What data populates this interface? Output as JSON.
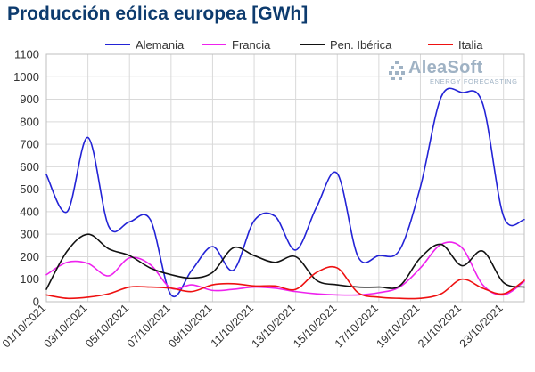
{
  "title": "Producción eólica europea [GWh]",
  "logo": {
    "name": "AleaSoft",
    "tagline": "ENERGY FORECASTING"
  },
  "chart_data": {
    "type": "line",
    "title": "Producción eólica europea [GWh]",
    "xlabel": "",
    "ylabel": "",
    "ylim": [
      0,
      1100
    ],
    "yticks": [
      0,
      100,
      200,
      300,
      400,
      500,
      600,
      700,
      800,
      900,
      1000,
      1100
    ],
    "grid": true,
    "legend_position": "top",
    "x": [
      "01/10/2021",
      "02/10/2021",
      "03/10/2021",
      "04/10/2021",
      "05/10/2021",
      "06/10/2021",
      "07/10/2021",
      "08/10/2021",
      "09/10/2021",
      "10/10/2021",
      "11/10/2021",
      "12/10/2021",
      "13/10/2021",
      "14/10/2021",
      "15/10/2021",
      "16/10/2021",
      "17/10/2021",
      "18/10/2021",
      "19/10/2021",
      "20/10/2021",
      "21/10/2021",
      "22/10/2021",
      "23/10/2021",
      "24/10/2021"
    ],
    "xtick_labels": [
      "01/10/2021",
      "03/10/2021",
      "05/10/2021",
      "07/10/2021",
      "09/10/2021",
      "11/10/2021",
      "13/10/2021",
      "15/10/2021",
      "17/10/2021",
      "19/10/2021",
      "21/10/2021",
      "23/10/2021"
    ],
    "series": [
      {
        "name": "Alemania",
        "color": "#2323d6",
        "values": [
          565,
          400,
          730,
          335,
          355,
          365,
          30,
          140,
          245,
          140,
          360,
          380,
          230,
          420,
          570,
          200,
          205,
          230,
          510,
          910,
          930,
          880,
          380,
          365
        ]
      },
      {
        "name": "Francia",
        "color": "#ee22ee",
        "values": [
          120,
          175,
          170,
          115,
          195,
          165,
          60,
          75,
          50,
          55,
          65,
          60,
          45,
          35,
          30,
          30,
          40,
          65,
          150,
          255,
          240,
          75,
          30,
          90
        ]
      },
      {
        "name": "Pen. Ibérica",
        "color": "#111111",
        "values": [
          55,
          225,
          300,
          235,
          205,
          150,
          120,
          105,
          130,
          240,
          205,
          175,
          200,
          95,
          75,
          65,
          65,
          70,
          195,
          255,
          160,
          225,
          85,
          65
        ]
      },
      {
        "name": "Italia",
        "color": "#ee1111",
        "values": [
          30,
          15,
          20,
          35,
          65,
          65,
          60,
          45,
          75,
          80,
          70,
          70,
          55,
          130,
          150,
          40,
          20,
          15,
          15,
          35,
          100,
          60,
          35,
          95
        ]
      }
    ]
  }
}
